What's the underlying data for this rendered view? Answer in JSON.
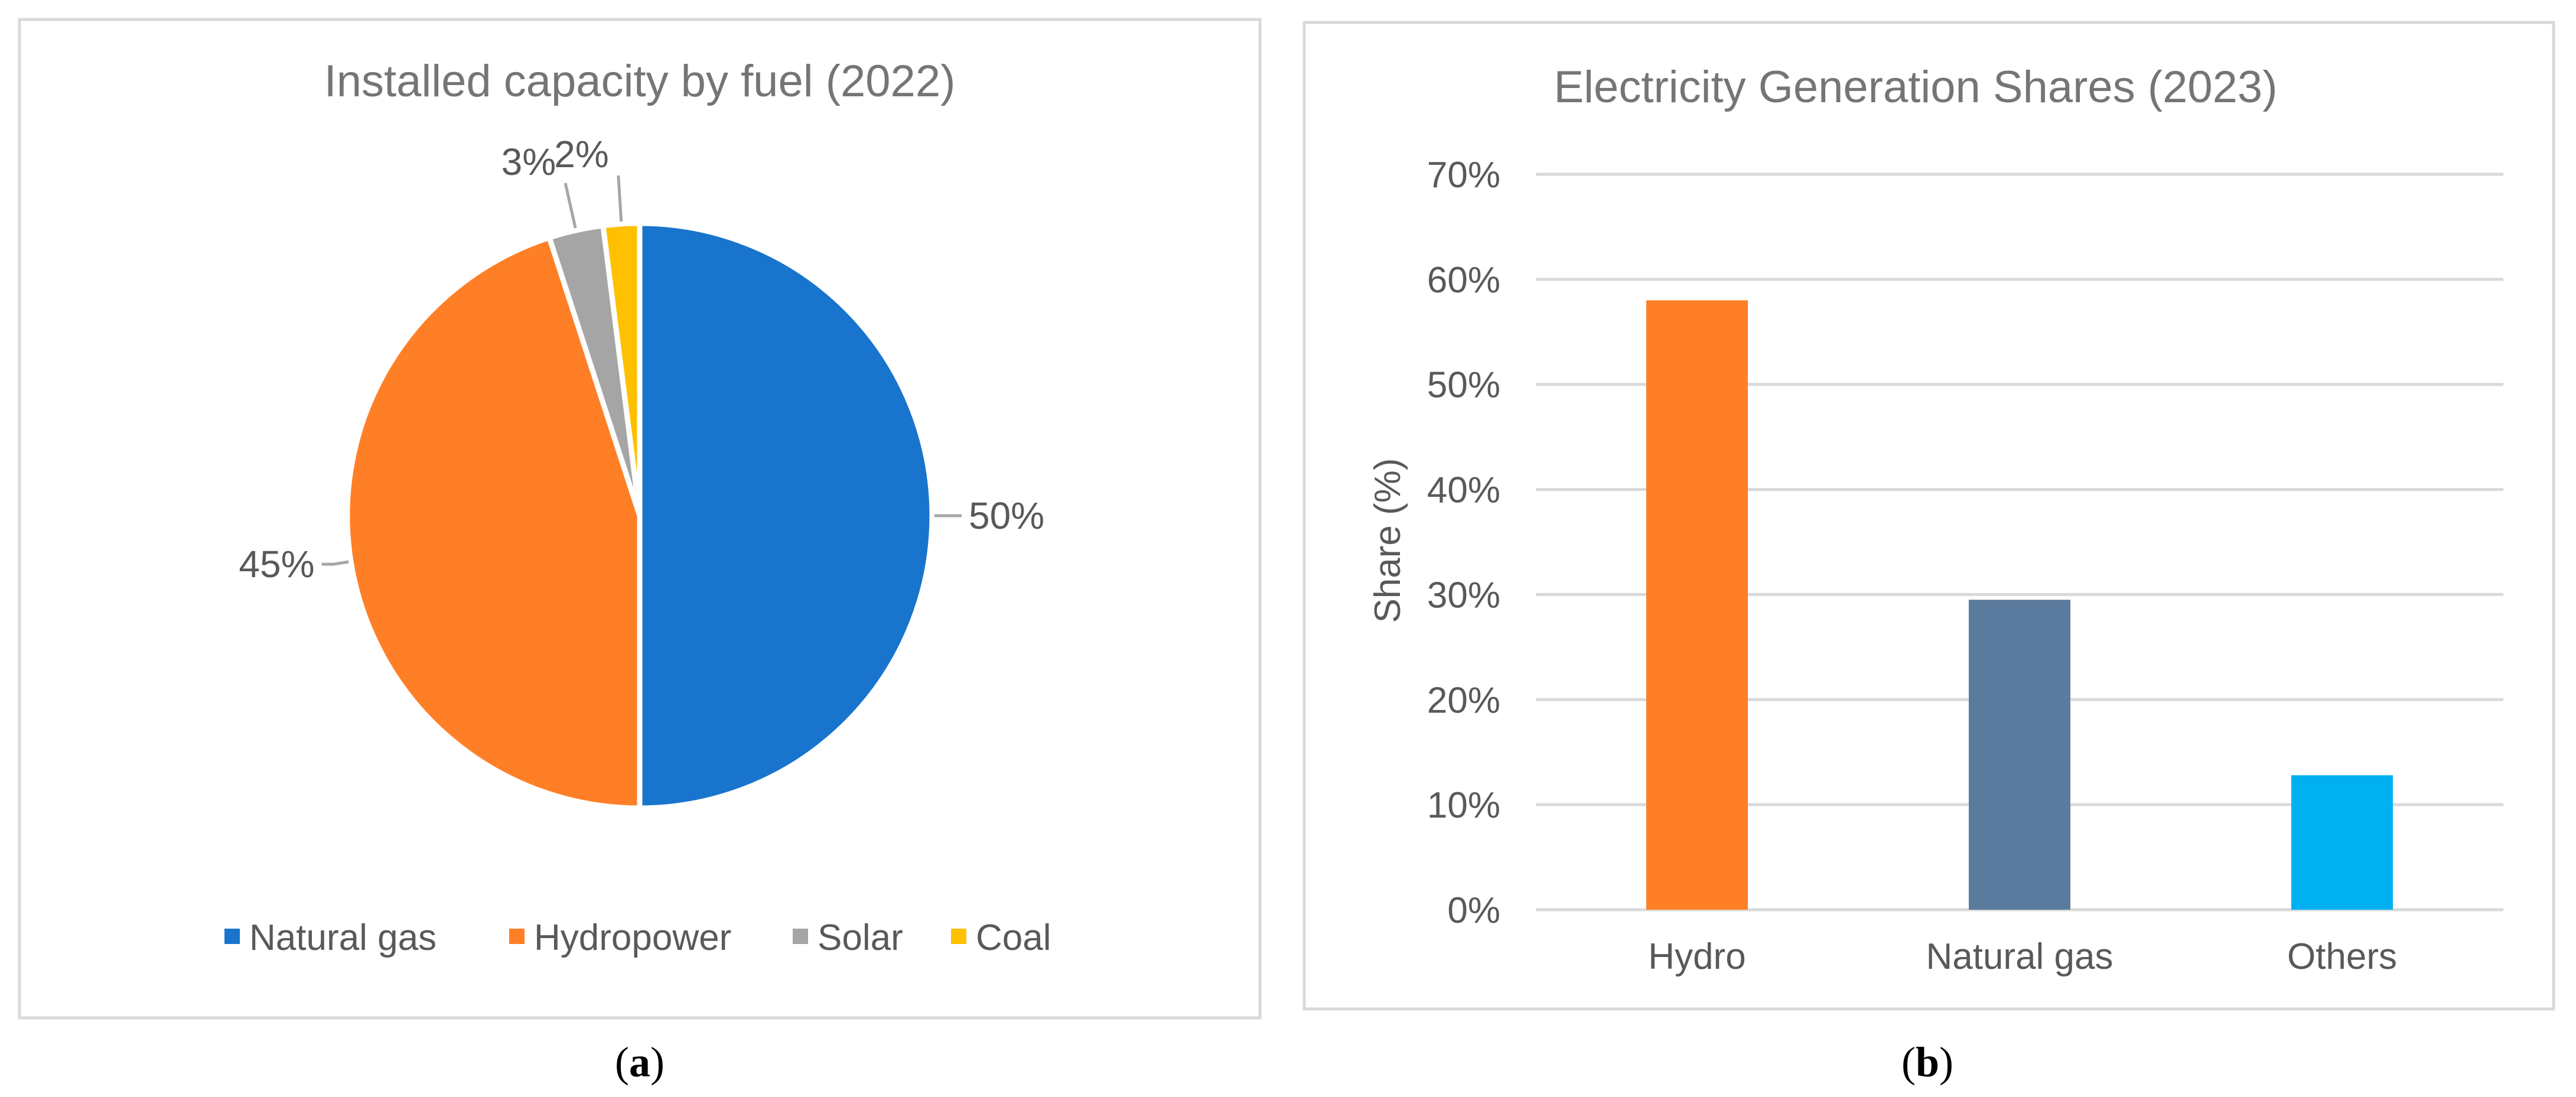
{
  "chart_data": [
    {
      "type": "pie",
      "title": "Installed capacity by fuel (2022)",
      "categories": [
        "Natural gas",
        "Hydropower",
        "Solar",
        "Coal"
      ],
      "values": [
        50,
        45,
        3,
        2
      ],
      "data_labels": [
        "50%",
        "45%",
        "3%",
        "2%"
      ],
      "colors": [
        "#1874CD",
        "#FF7F27",
        "#A5A5A5",
        "#FFC000"
      ],
      "legend": "bottom",
      "panel_label": {
        "open": "(",
        "letter": "a",
        "close": ")"
      }
    },
    {
      "type": "bar",
      "title": "Electricity Generation Shares (2023)",
      "categories": [
        "Hydro",
        "Natural gas",
        "Others"
      ],
      "values": [
        58,
        29.5,
        12.8
      ],
      "colors": [
        "#FF7F27",
        "#5B7B9E",
        "#00B0F0"
      ],
      "xlabel": "",
      "ylabel": "Share (%)",
      "ylim": [
        0,
        70
      ],
      "yticks": [
        0,
        10,
        20,
        30,
        40,
        50,
        60,
        70
      ],
      "ytick_labels": [
        "0%",
        "10%",
        "20%",
        "30%",
        "40%",
        "50%",
        "60%",
        "70%"
      ],
      "grid": true,
      "panel_label": {
        "open": "(",
        "letter": "b",
        "close": ")"
      }
    }
  ]
}
